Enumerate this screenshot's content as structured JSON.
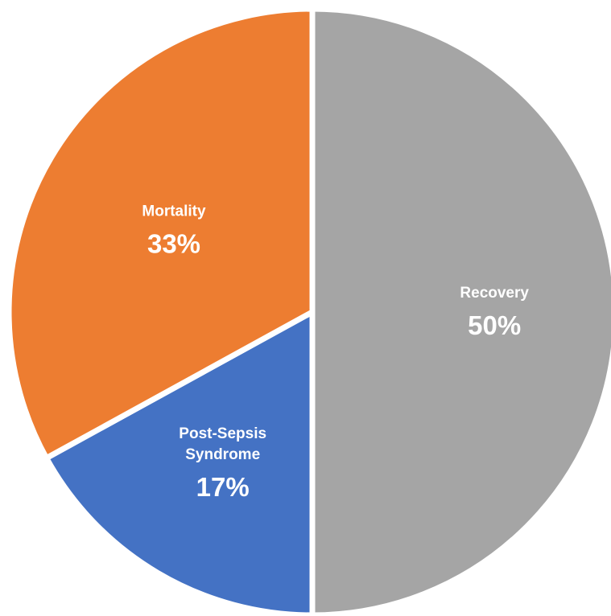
{
  "chart_data": {
    "type": "pie",
    "title": "",
    "slices": [
      {
        "label": "Recovery",
        "label_lines": [
          "Recovery"
        ],
        "value": 50,
        "display": "50%",
        "color": "#a5a5a5"
      },
      {
        "label": "Post-Sepsis Syndrome",
        "label_lines": [
          "Post-Sepsis",
          "Syndrome"
        ],
        "value": 17,
        "display": "17%",
        "color": "#4472c4"
      },
      {
        "label": "Mortality",
        "label_lines": [
          "Mortality"
        ],
        "value": 33,
        "display": "33%",
        "color": "#ed7d31"
      }
    ],
    "start_angle": "12 o'clock",
    "direction": "clockwise",
    "legend": "none",
    "label_color": "#ffffff"
  }
}
